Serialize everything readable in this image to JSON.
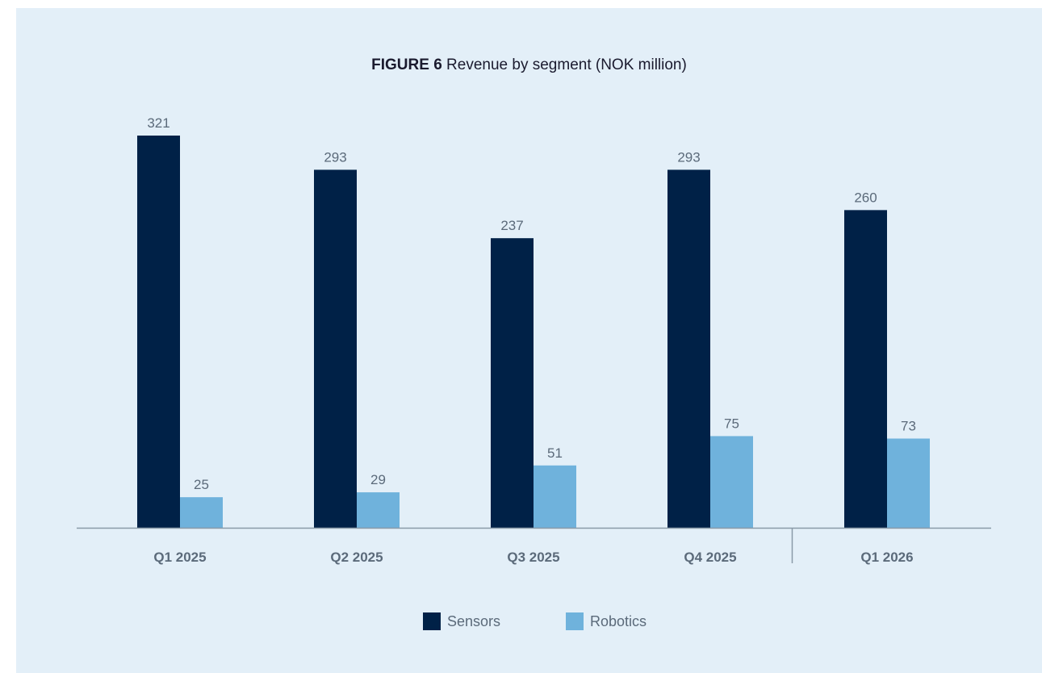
{
  "title": {
    "bold": "FIGURE 6",
    "text": "Revenue by segment (NOK million)"
  },
  "colors": {
    "sensors": "#002147",
    "robotics": "#6fb2dc",
    "axis": "#8a9aa8",
    "background": "#e3eff8"
  },
  "chart_data": {
    "type": "bar",
    "title": "FIGURE 6 Revenue by segment (NOK million)",
    "categories": [
      "Q1 2025",
      "Q2 2025",
      "Q3 2025",
      "Q4 2025",
      "Q1 2026"
    ],
    "series": [
      {
        "name": "Sensors",
        "values": [
          321,
          293,
          237,
          293,
          260
        ]
      },
      {
        "name": "Robotics",
        "values": [
          25,
          29,
          51,
          75,
          73
        ]
      }
    ],
    "ylim": [
      0,
      321
    ],
    "grid": false,
    "legend": "bottom-center",
    "separator_before_category": 4
  },
  "legend": {
    "sensors_label": "Sensors",
    "robotics_label": "Robotics"
  }
}
